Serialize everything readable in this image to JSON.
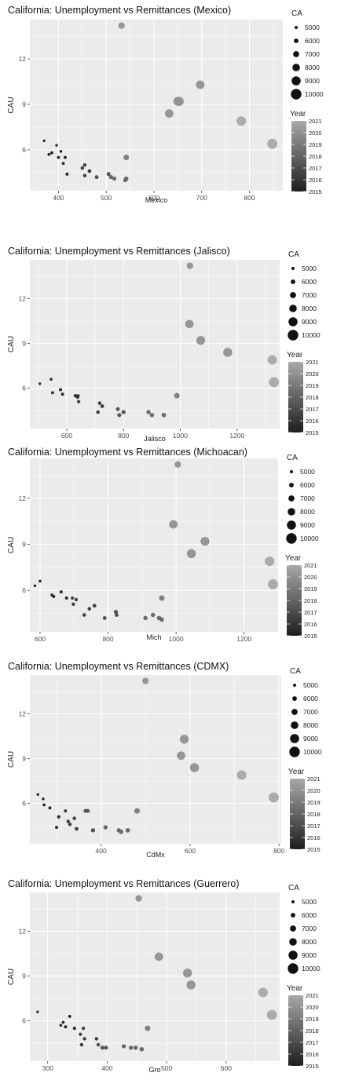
{
  "legend": {
    "size_title": "CA",
    "size_levels": [
      "5000",
      "6000",
      "7000",
      "8000",
      "9000",
      "10000"
    ],
    "color_title": "Year",
    "color_ticks": [
      "2021",
      "2020",
      "2019",
      "2018",
      "2017",
      "2016",
      "2015"
    ],
    "color_low": "#1e1e1e",
    "color_high": "#a8a8a8"
  },
  "colors": {
    "panel_background": "#ebebeb",
    "grid_line": "#ffffff",
    "axis_text": "#4d4d4d",
    "title_text": "#111111"
  },
  "chart_data": [
    {
      "type": "scatter",
      "title": "California: Unemployment vs Remittances (Mexico)",
      "xlabel": "Mexico",
      "ylabel": "CAU",
      "xlim": [
        340,
        870
      ],
      "ylim": [
        3.3,
        14.6
      ],
      "xticks": [
        "400",
        "500",
        "600",
        "700",
        "800"
      ],
      "yticks": [
        "6",
        "9",
        "12"
      ],
      "points": [
        {
          "x": 370,
          "y": 6.6,
          "year": 2015,
          "size": 4700
        },
        {
          "x": 380,
          "y": 5.7,
          "year": 2015,
          "size": 4900
        },
        {
          "x": 386,
          "y": 5.8,
          "year": 2015,
          "size": 5000
        },
        {
          "x": 396,
          "y": 6.3,
          "year": 2015,
          "size": 4700
        },
        {
          "x": 400,
          "y": 5.5,
          "year": 2015,
          "size": 5000
        },
        {
          "x": 405,
          "y": 5.9,
          "year": 2015,
          "size": 4800
        },
        {
          "x": 410,
          "y": 5.1,
          "year": 2015,
          "size": 4900
        },
        {
          "x": 414,
          "y": 5.5,
          "year": 2015,
          "size": 5000
        },
        {
          "x": 418,
          "y": 4.4,
          "year": 2015,
          "size": 5100
        },
        {
          "x": 450,
          "y": 4.8,
          "year": 2016,
          "size": 5300
        },
        {
          "x": 455,
          "y": 4.3,
          "year": 2016,
          "size": 5300
        },
        {
          "x": 455,
          "y": 5.0,
          "year": 2016,
          "size": 5300
        },
        {
          "x": 465,
          "y": 4.6,
          "year": 2016,
          "size": 5400
        },
        {
          "x": 480,
          "y": 4.2,
          "year": 2017,
          "size": 5500
        },
        {
          "x": 505,
          "y": 4.4,
          "year": 2017,
          "size": 5600
        },
        {
          "x": 510,
          "y": 4.2,
          "year": 2018,
          "size": 5700
        },
        {
          "x": 517,
          "y": 4.1,
          "year": 2018,
          "size": 5700
        },
        {
          "x": 540,
          "y": 4.0,
          "year": 2018,
          "size": 5800
        },
        {
          "x": 542,
          "y": 4.1,
          "year": 2018,
          "size": 5800
        },
        {
          "x": 542,
          "y": 5.5,
          "year": 2019,
          "size": 6600
        },
        {
          "x": 532,
          "y": 14.2,
          "year": 2020,
          "size": 7300
        },
        {
          "x": 632,
          "y": 8.4,
          "year": 2020,
          "size": 8600
        },
        {
          "x": 650,
          "y": 9.2,
          "year": 2020,
          "size": 8900
        },
        {
          "x": 653,
          "y": 9.2,
          "year": 2020,
          "size": 9000
        },
        {
          "x": 697,
          "y": 10.3,
          "year": 2020,
          "size": 8700
        },
        {
          "x": 783,
          "y": 7.9,
          "year": 2021,
          "size": 9300
        },
        {
          "x": 848,
          "y": 6.4,
          "year": 2021,
          "size": 9700
        }
      ]
    },
    {
      "type": "scatter",
      "title": "California: Unemployment vs Remittances (Jalisco)",
      "xlabel": "Jalisco",
      "ylabel": "CAU",
      "xlim": [
        470,
        1350
      ],
      "ylim": [
        3.3,
        14.6
      ],
      "xticks": [
        "600",
        "800",
        "1000",
        "1200"
      ],
      "yticks": [
        "6",
        "9",
        "12"
      ],
      "points": [
        {
          "x": 505,
          "y": 6.3,
          "year": 2015,
          "size": 4700
        },
        {
          "x": 545,
          "y": 6.6,
          "year": 2015,
          "size": 4800
        },
        {
          "x": 550,
          "y": 5.7,
          "year": 2015,
          "size": 4900
        },
        {
          "x": 578,
          "y": 5.9,
          "year": 2015,
          "size": 5000
        },
        {
          "x": 585,
          "y": 5.6,
          "year": 2015,
          "size": 5000
        },
        {
          "x": 630,
          "y": 5.5,
          "year": 2015,
          "size": 5100
        },
        {
          "x": 638,
          "y": 5.4,
          "year": 2015,
          "size": 5100
        },
        {
          "x": 640,
          "y": 5.5,
          "year": 2016,
          "size": 5200
        },
        {
          "x": 642,
          "y": 5.1,
          "year": 2016,
          "size": 5200
        },
        {
          "x": 710,
          "y": 4.4,
          "year": 2016,
          "size": 5300
        },
        {
          "x": 716,
          "y": 5.0,
          "year": 2016,
          "size": 5300
        },
        {
          "x": 725,
          "y": 4.8,
          "year": 2016,
          "size": 5400
        },
        {
          "x": 780,
          "y": 4.6,
          "year": 2017,
          "size": 5500
        },
        {
          "x": 785,
          "y": 4.2,
          "year": 2017,
          "size": 5600
        },
        {
          "x": 800,
          "y": 4.4,
          "year": 2017,
          "size": 5700
        },
        {
          "x": 888,
          "y": 4.4,
          "year": 2018,
          "size": 5800
        },
        {
          "x": 900,
          "y": 4.2,
          "year": 2018,
          "size": 5800
        },
        {
          "x": 942,
          "y": 4.2,
          "year": 2018,
          "size": 5900
        },
        {
          "x": 988,
          "y": 5.5,
          "year": 2019,
          "size": 6600
        },
        {
          "x": 1034,
          "y": 14.2,
          "year": 2020,
          "size": 7300
        },
        {
          "x": 1032,
          "y": 10.3,
          "year": 2020,
          "size": 8600
        },
        {
          "x": 1072,
          "y": 9.2,
          "year": 2020,
          "size": 8900
        },
        {
          "x": 1167,
          "y": 8.4,
          "year": 2020,
          "size": 9000
        },
        {
          "x": 1324,
          "y": 7.9,
          "year": 2021,
          "size": 9300
        },
        {
          "x": 1330,
          "y": 6.4,
          "year": 2021,
          "size": 9700
        }
      ]
    },
    {
      "type": "scatter",
      "title": "California: Unemployment vs Remittances (Michoacan)",
      "xlabel": "Mich",
      "ylabel": "CAU",
      "xlim": [
        570,
        1300
      ],
      "ylim": [
        3.3,
        14.6
      ],
      "xticks": [
        "600",
        "800",
        "1000",
        "1200"
      ],
      "yticks": [
        "6",
        "9",
        "12"
      ],
      "points": [
        {
          "x": 585,
          "y": 6.3,
          "year": 2015,
          "size": 4700
        },
        {
          "x": 600,
          "y": 6.6,
          "year": 2015,
          "size": 4800
        },
        {
          "x": 635,
          "y": 5.7,
          "year": 2015,
          "size": 4900
        },
        {
          "x": 640,
          "y": 5.6,
          "year": 2015,
          "size": 5000
        },
        {
          "x": 662,
          "y": 5.9,
          "year": 2015,
          "size": 5000
        },
        {
          "x": 678,
          "y": 5.5,
          "year": 2015,
          "size": 5100
        },
        {
          "x": 695,
          "y": 5.5,
          "year": 2016,
          "size": 5100
        },
        {
          "x": 698,
          "y": 5.1,
          "year": 2016,
          "size": 5200
        },
        {
          "x": 706,
          "y": 5.4,
          "year": 2016,
          "size": 5200
        },
        {
          "x": 730,
          "y": 4.4,
          "year": 2016,
          "size": 5300
        },
        {
          "x": 745,
          "y": 4.8,
          "year": 2016,
          "size": 5300
        },
        {
          "x": 760,
          "y": 5.0,
          "year": 2016,
          "size": 5400
        },
        {
          "x": 790,
          "y": 4.2,
          "year": 2017,
          "size": 5500
        },
        {
          "x": 825,
          "y": 4.4,
          "year": 2017,
          "size": 5600
        },
        {
          "x": 823,
          "y": 4.6,
          "year": 2017,
          "size": 5700
        },
        {
          "x": 910,
          "y": 4.2,
          "year": 2018,
          "size": 5800
        },
        {
          "x": 932,
          "y": 4.4,
          "year": 2018,
          "size": 5800
        },
        {
          "x": 950,
          "y": 4.2,
          "year": 2018,
          "size": 5900
        },
        {
          "x": 958,
          "y": 4.1,
          "year": 2018,
          "size": 5900
        },
        {
          "x": 958,
          "y": 5.5,
          "year": 2019,
          "size": 6600
        },
        {
          "x": 1005,
          "y": 14.2,
          "year": 2020,
          "size": 7300
        },
        {
          "x": 992,
          "y": 10.3,
          "year": 2020,
          "size": 8600
        },
        {
          "x": 1085,
          "y": 9.2,
          "year": 2020,
          "size": 8900
        },
        {
          "x": 1045,
          "y": 8.4,
          "year": 2020,
          "size": 9000
        },
        {
          "x": 1275,
          "y": 7.9,
          "year": 2021,
          "size": 9300
        },
        {
          "x": 1285,
          "y": 6.4,
          "year": 2021,
          "size": 9700
        }
      ]
    },
    {
      "type": "scatter",
      "title": "California: Unemployment vs Remittances (CDMX)",
      "xlabel": "CdMx",
      "ylabel": "CAU",
      "xlim": [
        240,
        805
      ],
      "ylim": [
        3.3,
        14.6
      ],
      "xticks": [
        "400",
        "600",
        "800"
      ],
      "yticks": [
        "6",
        "9",
        "12"
      ],
      "points": [
        {
          "x": 258,
          "y": 6.6,
          "year": 2015,
          "size": 4700
        },
        {
          "x": 270,
          "y": 6.3,
          "year": 2015,
          "size": 4800
        },
        {
          "x": 272,
          "y": 5.9,
          "year": 2015,
          "size": 4900
        },
        {
          "x": 285,
          "y": 5.7,
          "year": 2015,
          "size": 5000
        },
        {
          "x": 300,
          "y": 4.4,
          "year": 2015,
          "size": 5000
        },
        {
          "x": 305,
          "y": 5.1,
          "year": 2015,
          "size": 5100
        },
        {
          "x": 320,
          "y": 5.5,
          "year": 2016,
          "size": 5100
        },
        {
          "x": 326,
          "y": 4.8,
          "year": 2016,
          "size": 5200
        },
        {
          "x": 330,
          "y": 4.6,
          "year": 2016,
          "size": 5300
        },
        {
          "x": 340,
          "y": 5.0,
          "year": 2016,
          "size": 5300
        },
        {
          "x": 345,
          "y": 4.3,
          "year": 2016,
          "size": 5400
        },
        {
          "x": 365,
          "y": 5.5,
          "year": 2017,
          "size": 5500
        },
        {
          "x": 370,
          "y": 5.5,
          "year": 2017,
          "size": 5600
        },
        {
          "x": 382,
          "y": 4.2,
          "year": 2017,
          "size": 5700
        },
        {
          "x": 410,
          "y": 4.4,
          "year": 2018,
          "size": 5800
        },
        {
          "x": 440,
          "y": 4.2,
          "year": 2018,
          "size": 5800
        },
        {
          "x": 445,
          "y": 4.1,
          "year": 2018,
          "size": 5900
        },
        {
          "x": 460,
          "y": 4.2,
          "year": 2018,
          "size": 5900
        },
        {
          "x": 481,
          "y": 5.5,
          "year": 2019,
          "size": 6600
        },
        {
          "x": 500,
          "y": 14.2,
          "year": 2020,
          "size": 7300
        },
        {
          "x": 580,
          "y": 9.2,
          "year": 2020,
          "size": 8600
        },
        {
          "x": 587,
          "y": 10.3,
          "year": 2020,
          "size": 8900
        },
        {
          "x": 610,
          "y": 8.4,
          "year": 2020,
          "size": 9000
        },
        {
          "x": 716,
          "y": 7.9,
          "year": 2021,
          "size": 9300
        },
        {
          "x": 788,
          "y": 6.4,
          "year": 2021,
          "size": 9700
        }
      ]
    },
    {
      "type": "scatter",
      "title": "California: Unemployment vs Remittances (Guerrero)",
      "xlabel": "Gro",
      "ylabel": "CAU",
      "xlim": [
        270,
        690
      ],
      "ylim": [
        3.3,
        14.6
      ],
      "xticks": [
        "300",
        "400",
        "500",
        "600"
      ],
      "yticks": [
        "6",
        "9",
        "12"
      ],
      "points": [
        {
          "x": 283,
          "y": 6.6,
          "year": 2015,
          "size": 4700
        },
        {
          "x": 322,
          "y": 5.7,
          "year": 2015,
          "size": 4800
        },
        {
          "x": 326,
          "y": 5.9,
          "year": 2015,
          "size": 4900
        },
        {
          "x": 330,
          "y": 5.6,
          "year": 2015,
          "size": 5000
        },
        {
          "x": 337,
          "y": 6.3,
          "year": 2015,
          "size": 5000
        },
        {
          "x": 345,
          "y": 5.5,
          "year": 2015,
          "size": 5100
        },
        {
          "x": 355,
          "y": 5.1,
          "year": 2016,
          "size": 5100
        },
        {
          "x": 360,
          "y": 5.5,
          "year": 2016,
          "size": 5200
        },
        {
          "x": 362,
          "y": 4.8,
          "year": 2016,
          "size": 5200
        },
        {
          "x": 357,
          "y": 4.4,
          "year": 2016,
          "size": 5300
        },
        {
          "x": 382,
          "y": 4.8,
          "year": 2016,
          "size": 5300
        },
        {
          "x": 385,
          "y": 4.4,
          "year": 2017,
          "size": 5400
        },
        {
          "x": 392,
          "y": 4.2,
          "year": 2017,
          "size": 5500
        },
        {
          "x": 398,
          "y": 4.2,
          "year": 2017,
          "size": 5600
        },
        {
          "x": 428,
          "y": 4.3,
          "year": 2018,
          "size": 5700
        },
        {
          "x": 440,
          "y": 4.2,
          "year": 2018,
          "size": 5800
        },
        {
          "x": 448,
          "y": 4.2,
          "year": 2018,
          "size": 5800
        },
        {
          "x": 458,
          "y": 4.1,
          "year": 2018,
          "size": 5900
        },
        {
          "x": 468,
          "y": 5.5,
          "year": 2019,
          "size": 6600
        },
        {
          "x": 453,
          "y": 14.2,
          "year": 2020,
          "size": 7300
        },
        {
          "x": 487,
          "y": 10.3,
          "year": 2020,
          "size": 8600
        },
        {
          "x": 535,
          "y": 9.2,
          "year": 2020,
          "size": 8900
        },
        {
          "x": 541,
          "y": 8.4,
          "year": 2020,
          "size": 9000
        },
        {
          "x": 662,
          "y": 7.9,
          "year": 2021,
          "size": 9300
        },
        {
          "x": 677,
          "y": 6.4,
          "year": 2021,
          "size": 9700
        }
      ]
    }
  ]
}
